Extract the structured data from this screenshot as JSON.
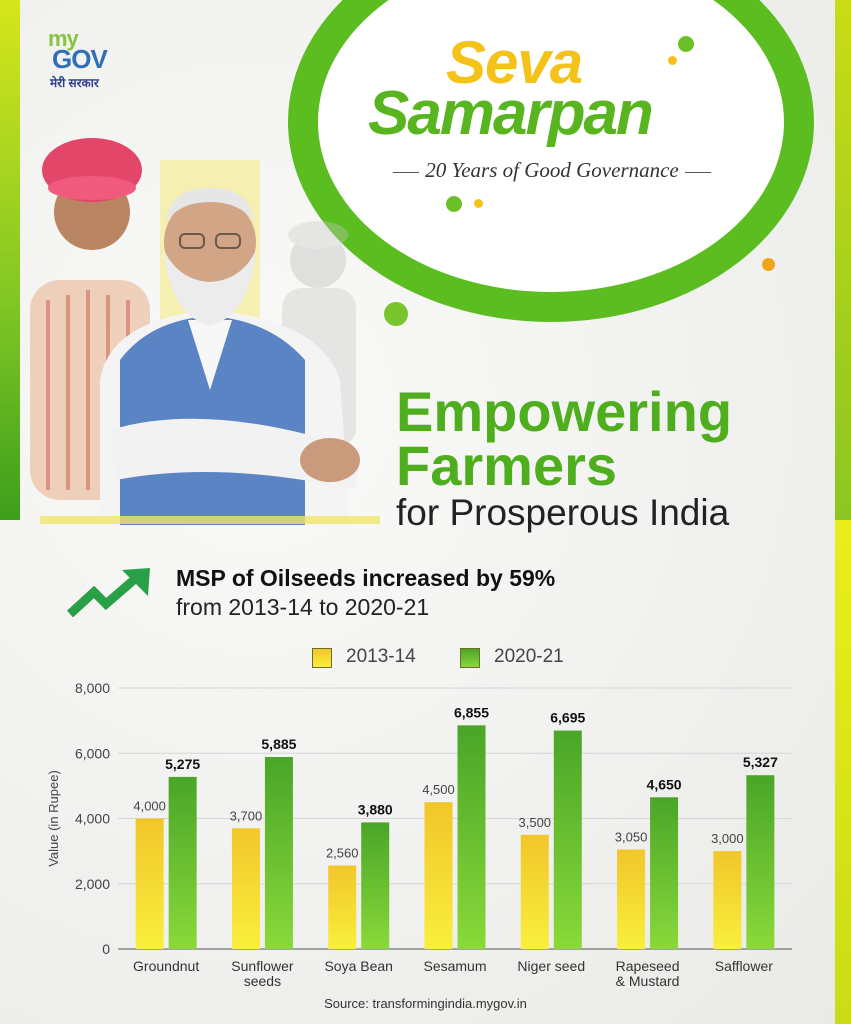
{
  "brand": {
    "logo_my": "my",
    "logo_gov": "GOV",
    "logo_hindi": "मेरी सरकार"
  },
  "header": {
    "title_line1": "Seva",
    "title_line2": "Samarpan",
    "tagline": "20 Years of Good Governance"
  },
  "headline": {
    "line1": "Empowering",
    "line2": "Farmers",
    "line3": "for Prosperous India"
  },
  "msp": {
    "bold": "MSP of Oilseeds increased by 59%",
    "sub": "from 2013-14 to 2020-21"
  },
  "colors": {
    "accent_green": "#5bbd20",
    "accent_yellow": "#f5c21a",
    "bar_2013_top": "#f1c62a",
    "bar_2013_bottom": "#f9ef3c",
    "bar_2020_top": "#4aa528",
    "bar_2020_bottom": "#8ad93a"
  },
  "chart_data": {
    "type": "bar",
    "title": "",
    "xlabel": "",
    "ylabel": "Value (in Rupee)",
    "ylim": [
      0,
      8000
    ],
    "yticks": [
      "0",
      "2,000",
      "4,000",
      "6,000",
      "8,000"
    ],
    "ytick_values": [
      0,
      2000,
      4000,
      6000,
      8000
    ],
    "categories": [
      [
        "Groundnut"
      ],
      [
        "Sunflower",
        "seeds"
      ],
      [
        "Soya Bean"
      ],
      [
        "Sesamum"
      ],
      [
        "Niger seed"
      ],
      [
        "Rapeseed",
        "& Mustard"
      ],
      [
        "Safflower"
      ]
    ],
    "series": [
      {
        "name": "2013-14",
        "values": [
          4000,
          3700,
          2560,
          4500,
          3500,
          3050,
          3000
        ],
        "labels": [
          "4,000",
          "3,700",
          "2,560",
          "4,500",
          "3,500",
          "3,050",
          "3,000"
        ]
      },
      {
        "name": "2020-21",
        "values": [
          5275,
          5885,
          3880,
          6855,
          6695,
          4650,
          5327
        ],
        "labels": [
          "5,275",
          "5,885",
          "3,880",
          "6,855",
          "6,695",
          "4,650",
          "5,327"
        ]
      }
    ],
    "legend_position": "top-center",
    "grid": true
  },
  "source": "Source: transformingindia.mygov.in"
}
